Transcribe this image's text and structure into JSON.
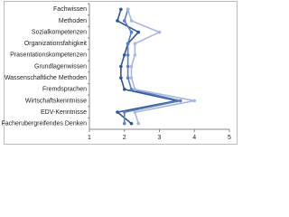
{
  "chart_data": {
    "type": "line",
    "orientation": "horizontal",
    "categories": [
      "Fachwissen",
      "Methoden",
      "Sozialkompetenzen",
      "Organizationsfahigkeit",
      "Prasentationskompetenzen",
      "Grundlagenwissen",
      "Wassenschaftliche Methoden",
      "Fremdsprachen",
      "Wirtschaftskenntnisse",
      "EDV-Kenntnisse",
      "Facherubergreifendes Denken"
    ],
    "series": [
      {
        "color": "#2f5597",
        "values": [
          1.9,
          1.8,
          2.4,
          2.1,
          2.0,
          1.9,
          1.9,
          2.0,
          3.5,
          1.8,
          2.2
        ]
      },
      {
        "color": "#5b7fbf",
        "values": [
          2.1,
          2.0,
          2.2,
          2.1,
          2.1,
          2.1,
          2.1,
          2.2,
          3.6,
          2.0,
          2.0
        ]
      },
      {
        "color": "#a9b8e0",
        "values": [
          2.1,
          2.2,
          3.0,
          2.3,
          2.3,
          2.2,
          2.2,
          2.3,
          4.0,
          2.3,
          2.4
        ]
      }
    ],
    "xlim": [
      1,
      5
    ],
    "xticks": [
      1,
      2,
      3,
      4,
      5
    ],
    "grid": false
  }
}
